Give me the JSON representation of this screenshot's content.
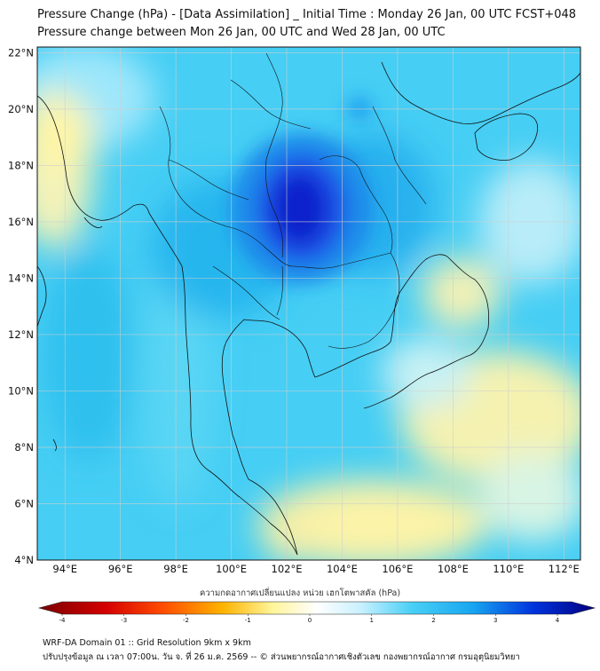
{
  "header": {
    "title_line1": "Pressure Change (hPa) - [Data Assimilation] _ Initial Time : Monday 26 Jan, 00 UTC FCST+048",
    "title_line2": "Pressure change between Mon 26 Jan, 00 UTC and Wed 28 Jan, 00 UTC"
  },
  "map": {
    "lat_labels": [
      "22°N",
      "20°N",
      "18°N",
      "16°N",
      "14°N",
      "12°N",
      "10°N",
      "8°N",
      "6°N",
      "4°N"
    ],
    "lon_labels": [
      "94°E",
      "96°E",
      "98°E",
      "100°E",
      "102°E",
      "104°E",
      "106°E",
      "108°E",
      "110°E",
      "112°E"
    ],
    "lat_range": [
      4,
      22.2
    ],
    "lon_range": [
      93,
      112.6
    ]
  },
  "colorbar": {
    "title": "ความกดอากาศเปลี่ยนแปลง หน่วย เฮกโตพาสคัล (hPa)",
    "labels": [
      "-4",
      "-3",
      "-2",
      "-1",
      "0",
      "1",
      "2",
      "3",
      "4"
    ],
    "colors": [
      "#7a0000",
      "#d40000",
      "#ff4a00",
      "#ffb300",
      "#fff59a",
      "#ffffff",
      "#c8f0ff",
      "#4ad0f6",
      "#18a6f0",
      "#0033dd",
      "#000080"
    ]
  },
  "footer": {
    "line1": "WRF-DA Domain 01 :: Grid Resolution 9km x 9km",
    "line2": "ปรับปรุงข้อมูล ณ เวลา 07:00น. วัน จ. ที่ 26 ม.ค. 2569 -- © ส่วนพยากรณ์อากาศเชิงตัวเลข กองพยากรณ์อากาศ กรมอุตุนิยมวิทยา"
  }
}
